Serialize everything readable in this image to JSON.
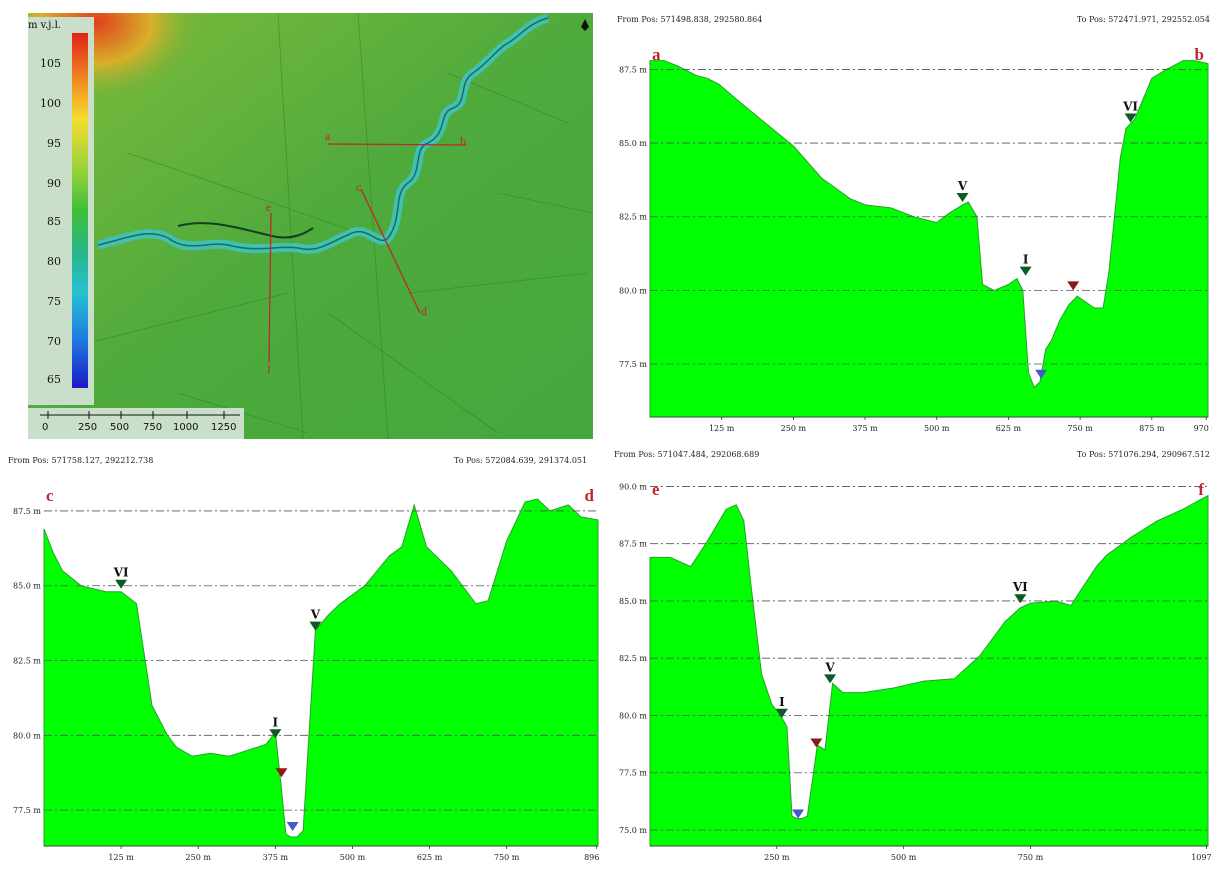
{
  "map": {
    "legend_title": "m v.j.l.",
    "legend_labels": [
      "105",
      "100",
      "95",
      "90",
      "85",
      "80",
      "75",
      "70",
      "65"
    ],
    "scale_labels": [
      "0",
      "250",
      "500",
      "750",
      "1000",
      "1250"
    ],
    "profile_labels": [
      "a",
      "b",
      "c",
      "d",
      "e",
      "f"
    ]
  },
  "colors": {
    "fill": "#00ff00",
    "profile_edge": "#2aa02a",
    "letter": "#c0282c",
    "marker_dark": "#0d5a22",
    "marker_red": "#8b1a1a",
    "marker_blue": "#4a55d0"
  },
  "profiles": [
    {
      "from_pos": "From Pos: 571498.838, 292580.864",
      "to_pos": "To Pos: 572471.971, 292552.054",
      "start_label": "a",
      "end_label": "b",
      "y_ticks": [
        "87.5 m",
        "85.0 m",
        "82.5 m",
        "80.0 m",
        "77.5 m"
      ],
      "x_ticks": [
        "125 m",
        "250 m",
        "375 m",
        "500 m",
        "625 m",
        "750 m",
        "875 m",
        "970 m"
      ],
      "markers": [
        {
          "label": "V",
          "color": "dark"
        },
        {
          "label": "I",
          "color": "dark"
        },
        {
          "label": "VI",
          "color": "dark"
        },
        {
          "label": "",
          "color": "red"
        },
        {
          "label": "",
          "color": "blue"
        }
      ]
    },
    {
      "from_pos": "From Pos: 571758.127, 292212.738",
      "to_pos": "To Pos: 572084.639, 291374.051",
      "start_label": "c",
      "end_label": "d",
      "y_ticks": [
        "87.5 m",
        "85.0 m",
        "82.5 m",
        "80.0 m",
        "77.5 m"
      ],
      "x_ticks": [
        "125 m",
        "250 m",
        "375 m",
        "500 m",
        "625 m",
        "750 m",
        "896 m"
      ],
      "markers": [
        {
          "label": "VI",
          "color": "dark"
        },
        {
          "label": "V",
          "color": "dark"
        },
        {
          "label": "I",
          "color": "dark"
        },
        {
          "label": "",
          "color": "red"
        },
        {
          "label": "",
          "color": "blue"
        }
      ]
    },
    {
      "from_pos": "From Pos: 571047.484, 292068.689",
      "to_pos": "To Pos: 571076.294, 290967.512",
      "start_label": "e",
      "end_label": "f",
      "y_ticks": [
        "90.0 m",
        "87.5 m",
        "85.0 m",
        "82.5 m",
        "80.0 m",
        "77.5 m",
        "75.0 m"
      ],
      "x_ticks": [
        "250 m",
        "500 m",
        "750 m",
        "1097 m"
      ],
      "markers": [
        {
          "label": "I",
          "color": "dark"
        },
        {
          "label": "V",
          "color": "dark"
        },
        {
          "label": "VI",
          "color": "dark"
        },
        {
          "label": "",
          "color": "red"
        },
        {
          "label": "",
          "color": "blue"
        }
      ]
    }
  ],
  "chart_data": [
    {
      "type": "area",
      "title": "a – b",
      "xlabel": "",
      "ylabel": "",
      "xlim": [
        0,
        973
      ],
      "ylim": [
        75.7,
        88.5
      ],
      "x": [
        0,
        25,
        50,
        80,
        100,
        120,
        150,
        200,
        250,
        300,
        350,
        375,
        420,
        460,
        500,
        520,
        545,
        555,
        570,
        580,
        600,
        625,
        640,
        650,
        660,
        670,
        680,
        690,
        700,
        715,
        730,
        745,
        760,
        775,
        790,
        800,
        810,
        820,
        830,
        840,
        845,
        860,
        875,
        900,
        930,
        950,
        973
      ],
      "y": [
        87.8,
        87.8,
        87.6,
        87.3,
        87.2,
        87.0,
        86.5,
        85.7,
        84.9,
        83.8,
        83.1,
        82.9,
        82.8,
        82.5,
        82.3,
        82.6,
        82.9,
        83.0,
        82.5,
        80.2,
        80.0,
        80.2,
        80.4,
        80.0,
        77.2,
        76.7,
        76.9,
        78.0,
        78.3,
        79.0,
        79.5,
        79.8,
        79.6,
        79.4,
        79.4,
        80.6,
        82.5,
        84.5,
        85.5,
        85.7,
        85.8,
        86.5,
        87.2,
        87.5,
        87.8,
        87.8,
        87.7
      ],
      "markers": [
        {
          "label": "V",
          "x": 545,
          "y": 83.0
        },
        {
          "label": "I",
          "x": 655,
          "y": 80.5
        },
        {
          "label": "VI",
          "x": 838,
          "y": 85.7
        },
        {
          "label": "",
          "x": 738,
          "y": 80.0
        },
        {
          "label": "",
          "x": 682,
          "y": 77.0
        }
      ]
    },
    {
      "type": "area",
      "title": "c – d",
      "xlabel": "",
      "ylabel": "",
      "xlim": [
        0,
        898
      ],
      "ylim": [
        76.3,
        88.5
      ],
      "x": [
        0,
        15,
        30,
        60,
        100,
        125,
        150,
        175,
        200,
        215,
        240,
        270,
        300,
        330,
        360,
        375,
        385,
        392,
        400,
        410,
        420,
        430,
        440,
        460,
        480,
        520,
        560,
        580,
        600,
        620,
        660,
        700,
        720,
        750,
        780,
        800,
        820,
        850,
        870,
        898
      ],
      "y": [
        86.9,
        86.1,
        85.5,
        85.0,
        84.8,
        84.8,
        84.4,
        81.0,
        80.0,
        79.6,
        79.3,
        79.4,
        79.3,
        79.5,
        79.7,
        80.1,
        78.2,
        76.7,
        76.6,
        76.6,
        76.8,
        80.2,
        83.5,
        84.0,
        84.4,
        85.0,
        86.0,
        86.3,
        87.7,
        86.3,
        85.5,
        84.4,
        84.5,
        86.5,
        87.8,
        87.9,
        87.5,
        87.7,
        87.3,
        87.2
      ],
      "markers": [
        {
          "label": "VI",
          "x": 125,
          "y": 84.9
        },
        {
          "label": "V",
          "x": 440,
          "y": 83.5
        },
        {
          "label": "I",
          "x": 375,
          "y": 79.9
        },
        {
          "label": "",
          "x": 385,
          "y": 78.6
        },
        {
          "label": "",
          "x": 403,
          "y": 76.8
        }
      ]
    },
    {
      "type": "area",
      "title": "e – f",
      "xlabel": "",
      "ylabel": "",
      "xlim": [
        0,
        1100
      ],
      "ylim": [
        74.3,
        90.5
      ],
      "x": [
        0,
        40,
        80,
        110,
        150,
        170,
        185,
        200,
        220,
        240,
        260,
        270,
        280,
        290,
        300,
        310,
        330,
        345,
        360,
        380,
        420,
        480,
        540,
        600,
        650,
        700,
        730,
        750,
        800,
        830,
        850,
        880,
        900,
        950,
        1000,
        1050,
        1100
      ],
      "y": [
        86.9,
        86.9,
        86.5,
        87.5,
        89.0,
        89.2,
        88.5,
        85.5,
        81.8,
        80.5,
        79.9,
        79.5,
        75.6,
        75.5,
        75.5,
        75.6,
        78.7,
        78.5,
        81.4,
        81.0,
        81.0,
        81.2,
        81.5,
        81.6,
        82.6,
        84.1,
        84.7,
        84.9,
        85.0,
        84.8,
        85.5,
        86.5,
        87.0,
        87.8,
        88.5,
        89.0,
        89.6
      ],
      "markers": [
        {
          "label": "I",
          "x": 260,
          "y": 79.9
        },
        {
          "label": "V",
          "x": 355,
          "y": 81.4
        },
        {
          "label": "VI",
          "x": 730,
          "y": 84.9
        },
        {
          "label": "",
          "x": 328,
          "y": 78.6
        },
        {
          "label": "",
          "x": 292,
          "y": 75.5
        }
      ]
    }
  ]
}
